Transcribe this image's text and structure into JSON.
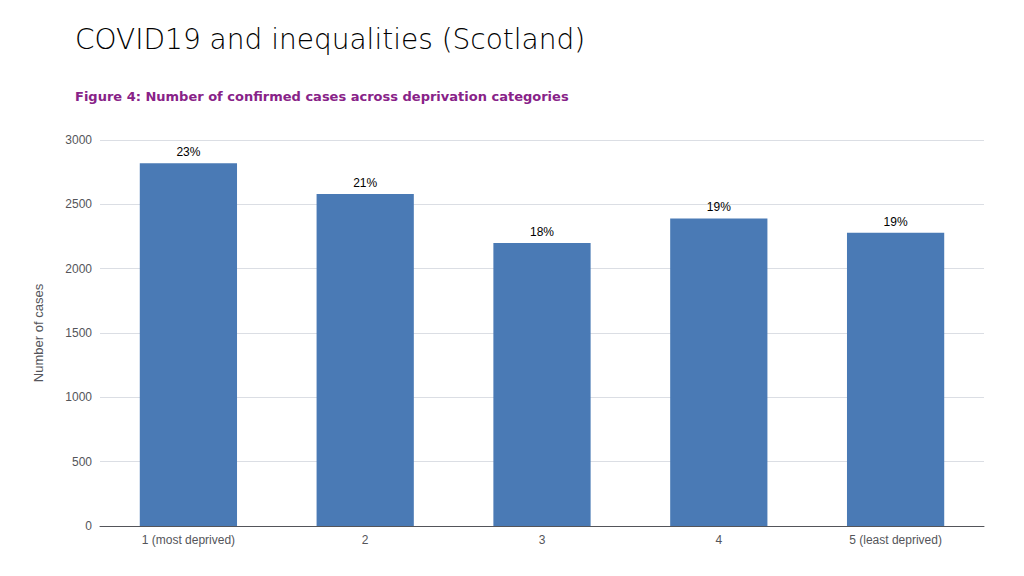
{
  "chart_data": {
    "type": "bar",
    "title": "COVID19 and inequalities (Scotland)",
    "subtitle": "Figure 4: Number of confirmed cases across deprivation categories",
    "categories": [
      "1 (most deprived)",
      "2",
      "3",
      "4",
      "5 (least deprived)"
    ],
    "values": [
      2820,
      2580,
      2200,
      2390,
      2280
    ],
    "value_labels": [
      "23%",
      "21%",
      "18%",
      "19%",
      "19%"
    ],
    "data_labels": true,
    "color": "#4a7ab5",
    "ylabel": "Number of cases",
    "ylim": [
      0,
      3000
    ],
    "yticks": [
      0,
      500,
      1000,
      1500,
      2000,
      2500,
      3000
    ],
    "grid": true
  }
}
